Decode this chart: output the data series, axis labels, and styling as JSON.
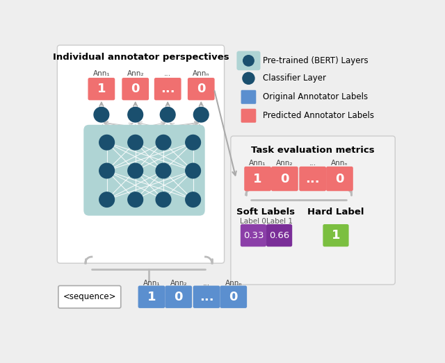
{
  "bg_color": "#eeeeee",
  "left_panel_bg": "#ffffff",
  "bert_bg": "#afd4d4",
  "title_text": "Individual annotator perspectives",
  "red_color": "#f07070",
  "blue_color": "#5b8fcf",
  "dark_blue": "#1a4f6e",
  "purple_light": "#8b3fa8",
  "purple_dark": "#7a2e98",
  "green_color": "#7bbf40",
  "ann_labels": [
    "Ann₁",
    "Ann₂",
    "...",
    "Annₙ"
  ],
  "box_labels_top": [
    "1",
    "0",
    "...",
    "0"
  ],
  "box_labels_bottom": [
    "1",
    "0",
    "...",
    "0"
  ],
  "legend_bert_label": "Pre-trained (BERT) Layers",
  "legend_cls_label": "Classifier Layer",
  "legend_orig_label": "Original Annotator Labels",
  "legend_pred_label": "Predicted Annotator Labels",
  "task_title": "Task evaluation metrics",
  "soft_labels_title": "Soft Labels",
  "hard_label_title": "Hard Label",
  "label0_text": "Label 0",
  "label1_text": "Label 1",
  "soft_val0": "0.33",
  "soft_val1": "0.66",
  "hard_val": "1",
  "sequence_text": "<sequence>"
}
